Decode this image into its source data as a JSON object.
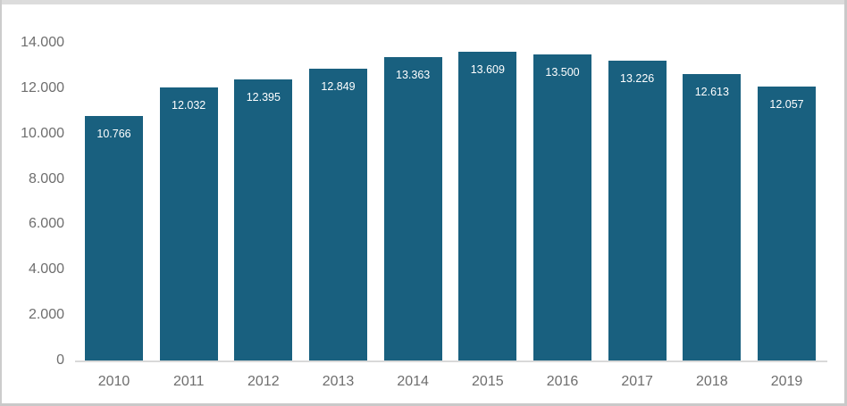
{
  "chart_data": {
    "type": "bar",
    "title": "",
    "xlabel": "",
    "ylabel": "",
    "categories": [
      "2010",
      "2011",
      "2012",
      "2013",
      "2014",
      "2015",
      "2016",
      "2017",
      "2018",
      "2019"
    ],
    "values": [
      10766,
      12032,
      12395,
      12849,
      13363,
      13609,
      13500,
      13226,
      12613,
      12057
    ],
    "value_labels": [
      "10.766",
      "12.032",
      "12.395",
      "12.849",
      "13.363",
      "13.609",
      "13.500",
      "13.226",
      "12.613",
      "12.057"
    ],
    "ylim": [
      0,
      14000
    ],
    "ytick_step": 2000,
    "ytick_labels": [
      "0",
      "2.000",
      "4.000",
      "6.000",
      "8.000",
      "10.000",
      "12.000",
      "14.000"
    ],
    "grid": false,
    "legend": false,
    "value_label_position": "inside-top",
    "colors": {
      "bar_fill": "#19607F",
      "bar_value_label": "#FFFFFF",
      "axis_text": "#6E6E6E",
      "axis_line": "#D9D9D9",
      "background": "#FFFFFF",
      "frame": "#CCCCCC"
    }
  }
}
